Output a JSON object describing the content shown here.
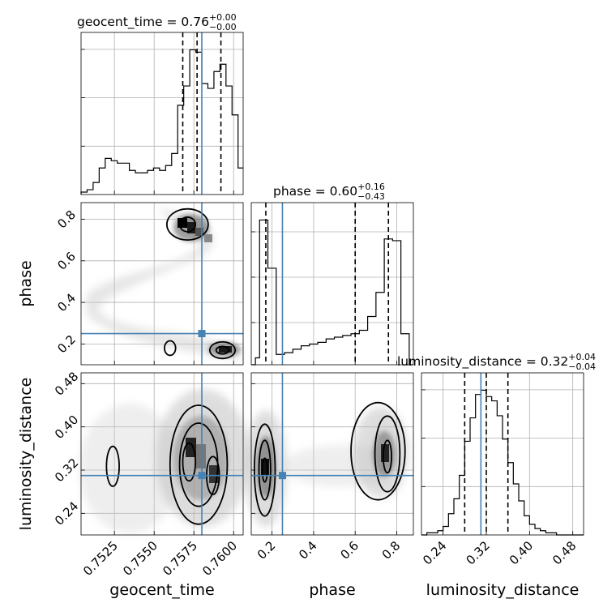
{
  "chart_data": {
    "type": "corner",
    "parameters": [
      "geocent_time",
      "phase",
      "luminosity_distance"
    ],
    "colors": {
      "truth": "#4682b4",
      "lines": "#000000",
      "grid": "#b0b0b0"
    },
    "grid": true,
    "titles": {
      "geocent_time": {
        "label": "geocent_time = 0.76",
        "plus": "+0.00",
        "minus": "−0.00"
      },
      "phase": {
        "label": "phase = 0.60",
        "plus": "+0.16",
        "minus": "−0.43"
      },
      "luminosity_distance": {
        "label": "luminosity_distance = 0.32",
        "plus": "+0.04",
        "minus": "−0.04"
      }
    },
    "axes": {
      "geocent_time": {
        "range": [
          0.7504,
          0.7606
        ],
        "ticks": [
          0.7525,
          0.755,
          0.7575,
          0.76
        ],
        "tick_labels": [
          "0.7525",
          "0.7550",
          "0.7575",
          "0.7600"
        ]
      },
      "phase": {
        "range": [
          0.1,
          0.88
        ],
        "ticks": [
          0.2,
          0.4,
          0.6,
          0.8
        ],
        "tick_labels": [
          "0.2",
          "0.4",
          "0.6",
          "0.8"
        ]
      },
      "luminosity_distance": {
        "range": [
          0.2,
          0.5
        ],
        "ticks": [
          0.24,
          0.32,
          0.4,
          0.48
        ],
        "tick_labels": [
          "0.24",
          "0.32",
          "0.40",
          "0.48"
        ]
      }
    },
    "truths": {
      "geocent_time": 0.758,
      "phase": 0.25,
      "luminosity_distance": 0.31
    },
    "quantiles": {
      "geocent_time": [
        0.7568,
        0.7577,
        0.7592
      ],
      "phase": [
        0.17,
        0.6,
        0.76
      ],
      "luminosity_distance": [
        0.28,
        0.32,
        0.36
      ]
    },
    "histograms": {
      "geocent_time": {
        "edges": [
          0.7504,
          0.75078,
          0.75116,
          0.75154,
          0.75192,
          0.7523,
          0.75268,
          0.75306,
          0.75344,
          0.75382,
          0.7542,
          0.75458,
          0.75496,
          0.75534,
          0.75572,
          0.7561,
          0.75648,
          0.75686,
          0.75724,
          0.75762,
          0.758,
          0.75838,
          0.75876,
          0.75914,
          0.75952,
          0.7599,
          0.76028,
          0.7606
        ],
        "counts": [
          1,
          2,
          5,
          11,
          15,
          14,
          13,
          13,
          10,
          9,
          9,
          10,
          11,
          10,
          12,
          17,
          37,
          45,
          60,
          59,
          46,
          44,
          51,
          54,
          45,
          33,
          11
        ]
      },
      "phase": {
        "edges": [
          0.1,
          0.12,
          0.14,
          0.16,
          0.18,
          0.2,
          0.22,
          0.24,
          0.26,
          0.28,
          0.3,
          0.32,
          0.34,
          0.36,
          0.38,
          0.4,
          0.42,
          0.44,
          0.46,
          0.48,
          0.5,
          0.52,
          0.54,
          0.56,
          0.58,
          0.6,
          0.62,
          0.64,
          0.66,
          0.68,
          0.7,
          0.72,
          0.74,
          0.76,
          0.78,
          0.8,
          0.82,
          0.84,
          0.86,
          0.88
        ],
        "counts": [
          0,
          4,
          84,
          84,
          56,
          56,
          6,
          6,
          7,
          7,
          9,
          9,
          11,
          11,
          12,
          12,
          13,
          13,
          15,
          15,
          16,
          16,
          17,
          17,
          18,
          18,
          20,
          20,
          28,
          28,
          42,
          42,
          73,
          73,
          72,
          72,
          18,
          18,
          0
        ]
      },
      "luminosity_distance": {
        "edges": [
          0.2,
          0.21,
          0.22,
          0.23,
          0.24,
          0.25,
          0.26,
          0.27,
          0.28,
          0.29,
          0.3,
          0.31,
          0.32,
          0.33,
          0.34,
          0.35,
          0.36,
          0.37,
          0.38,
          0.39,
          0.4,
          0.41,
          0.42,
          0.43,
          0.44,
          0.45,
          0.46,
          0.47,
          0.48,
          0.49,
          0.5
        ],
        "counts": [
          0,
          1,
          1,
          2,
          4,
          10,
          17,
          28,
          44,
          55,
          66,
          68,
          65,
          63,
          56,
          45,
          34,
          24,
          16,
          9,
          5,
          3,
          2,
          1,
          1,
          0,
          0,
          0,
          0,
          0
        ]
      }
    },
    "contours": {
      "phase_vs_geocent_time": [
        {
          "x": 0.756,
          "y": 0.18,
          "rx": 0.00035,
          "ry": 0.035,
          "level": 1
        },
        {
          "x": 0.7571,
          "y": 0.775,
          "rx": 0.0013,
          "ry": 0.075,
          "level": 1
        },
        {
          "x": 0.7571,
          "y": 0.775,
          "rx": 0.0005,
          "ry": 0.035,
          "level": 2
        },
        {
          "x": 0.7593,
          "y": 0.17,
          "rx": 0.0008,
          "ry": 0.04,
          "level": 1
        },
        {
          "x": 0.7593,
          "y": 0.17,
          "rx": 0.0004,
          "ry": 0.018,
          "level": 2
        }
      ],
      "luminosity_distance_vs_geocent_time": [
        {
          "x": 0.7524,
          "y": 0.327,
          "rx": 0.0004,
          "ry": 0.037,
          "level": 1
        },
        {
          "x": 0.7578,
          "y": 0.33,
          "rx": 0.0018,
          "ry": 0.11,
          "level": 1
        },
        {
          "x": 0.7578,
          "y": 0.33,
          "rx": 0.0012,
          "ry": 0.077,
          "level": 2
        },
        {
          "x": 0.7572,
          "y": 0.335,
          "rx": 0.0004,
          "ry": 0.035,
          "level": 3
        },
        {
          "x": 0.7587,
          "y": 0.31,
          "rx": 0.0004,
          "ry": 0.035,
          "level": 3
        }
      ],
      "luminosity_distance_vs_phase": [
        {
          "x": 0.165,
          "y": 0.32,
          "rx": 0.05,
          "ry": 0.085,
          "level": 1
        },
        {
          "x": 0.165,
          "y": 0.32,
          "rx": 0.028,
          "ry": 0.055,
          "level": 2
        },
        {
          "x": 0.165,
          "y": 0.32,
          "rx": 0.012,
          "ry": 0.022,
          "level": 3
        },
        {
          "x": 0.71,
          "y": 0.355,
          "rx": 0.13,
          "ry": 0.09,
          "level": 1
        },
        {
          "x": 0.755,
          "y": 0.35,
          "rx": 0.06,
          "ry": 0.07,
          "level": 2
        },
        {
          "x": 0.755,
          "y": 0.345,
          "rx": 0.02,
          "ry": 0.03,
          "level": 3
        }
      ]
    }
  }
}
